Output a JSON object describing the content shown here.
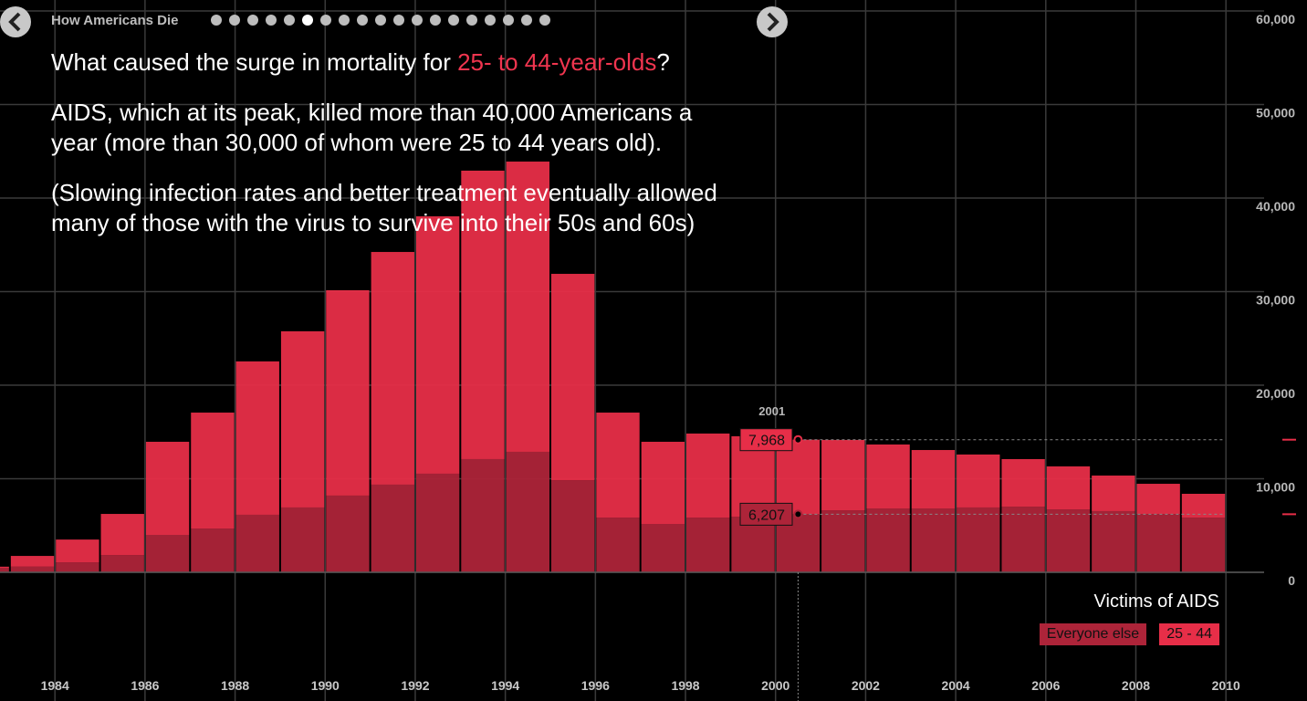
{
  "header": {
    "title": "How Americans Die"
  },
  "text": {
    "question_before": "What caused the surge in mortality for ",
    "question_highlight": "25- to 44-year-olds",
    "question_after": "?",
    "paragraphs": [
      "AIDS, which at its peak, killed more than 40,000 Americans a year (more than 30,000 of whom were 25 to 44 years old).",
      "(Slowing infection rates and better treatment eventually allowed many of those with the virus to survive into their 50s and 60s)"
    ]
  },
  "chart_data": {
    "type": "bar",
    "stacked": true,
    "legend_title": "Victims of AIDS",
    "x": [
      1983,
      1984,
      1985,
      1986,
      1987,
      1988,
      1989,
      1990,
      1991,
      1992,
      1993,
      1994,
      1995,
      1996,
      1997,
      1998,
      1999,
      2000,
      2001,
      2002,
      2003,
      2004,
      2005,
      2006,
      2007,
      2008,
      2009,
      2010
    ],
    "series": [
      {
        "name": "Everyone else",
        "color": "#ad2439",
        "values": [
          450,
          600,
          1070,
          1850,
          4000,
          4680,
          6150,
          6930,
          8200,
          9370,
          10540,
          12100,
          12880,
          9850,
          5850,
          5170,
          5850,
          5950,
          6207,
          6630,
          6830,
          6830,
          6930,
          7020,
          6730,
          6540,
          6240,
          5850
        ]
      },
      {
        "name": "25 - 44",
        "color": "#e72e48",
        "values": [
          150,
          1150,
          2430,
          4390,
          9950,
          12390,
          16390,
          18830,
          21950,
          24870,
          27510,
          30830,
          31020,
          22050,
          11220,
          8780,
          8980,
          8590,
          7968,
          7520,
          6830,
          6240,
          5660,
          5080,
          4590,
          3800,
          3220,
          2540
        ]
      }
    ],
    "highlight": {
      "x": 2001,
      "index": 18,
      "value_labels": [
        "6,207",
        "7,968"
      ]
    },
    "xlim": [
      1982.78,
      2011.8
    ],
    "xticks": [
      {
        "value": 1984,
        "label": "1984"
      },
      {
        "value": 1986,
        "label": "1986"
      },
      {
        "value": 1988,
        "label": "1988"
      },
      {
        "value": 1990,
        "label": "1990"
      },
      {
        "value": 1992,
        "label": "1992"
      },
      {
        "value": 1994,
        "label": "1994"
      },
      {
        "value": 1996,
        "label": "1996"
      },
      {
        "value": 1998,
        "label": "1998"
      },
      {
        "value": 2000,
        "label": "2000"
      },
      {
        "value": 2002,
        "label": "2002"
      },
      {
        "value": 2004,
        "label": "2004"
      },
      {
        "value": 2006,
        "label": "2006"
      },
      {
        "value": 2008,
        "label": "2008"
      },
      {
        "value": 2010,
        "label": "2010"
      }
    ],
    "ylim": [
      0,
      60000
    ],
    "yticks": [
      0,
      {
        "value": 10000,
        "label": "10,000"
      },
      {
        "value": 20000,
        "label": "20,000"
      },
      {
        "value": 30000,
        "label": "30,000"
      },
      {
        "value": 40000,
        "label": "40,000"
      },
      {
        "value": 50000,
        "label": "50,000"
      },
      {
        "value": 60000,
        "label": "60,000"
      }
    ],
    "grid": true
  }
}
